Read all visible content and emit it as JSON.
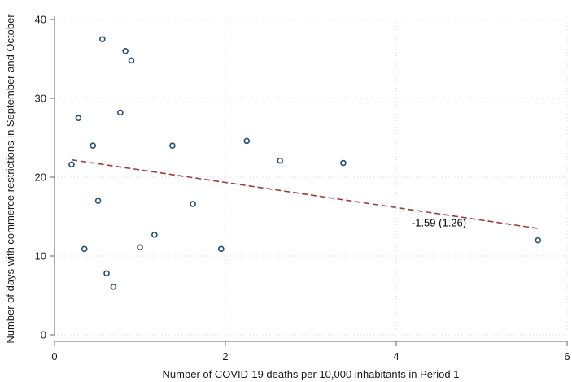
{
  "chart_data": {
    "type": "scatter",
    "xlabel": "Number of COVID-19 deaths per 10,000 inhabitants in Period 1",
    "ylabel": "Number of days with commerce restrictions in September and October",
    "xlim": [
      0,
      6
    ],
    "ylim": [
      0,
      40
    ],
    "x_ticks": [
      "0",
      "2",
      "4",
      "6"
    ],
    "y_ticks": [
      "0",
      "10",
      "20",
      "30",
      "40"
    ],
    "grid": true,
    "points": [
      {
        "x": 0.2,
        "y": 21.6
      },
      {
        "x": 0.28,
        "y": 27.5
      },
      {
        "x": 0.35,
        "y": 10.9
      },
      {
        "x": 0.45,
        "y": 24.0
      },
      {
        "x": 0.51,
        "y": 17.0
      },
      {
        "x": 0.56,
        "y": 37.5
      },
      {
        "x": 0.61,
        "y": 7.8
      },
      {
        "x": 0.69,
        "y": 6.1
      },
      {
        "x": 0.77,
        "y": 28.2
      },
      {
        "x": 0.83,
        "y": 36.0
      },
      {
        "x": 0.9,
        "y": 34.8
      },
      {
        "x": 1.0,
        "y": 11.1
      },
      {
        "x": 1.17,
        "y": 12.7
      },
      {
        "x": 1.38,
        "y": 24.0
      },
      {
        "x": 1.62,
        "y": 16.6
      },
      {
        "x": 1.95,
        "y": 10.9
      },
      {
        "x": 2.25,
        "y": 24.6
      },
      {
        "x": 2.64,
        "y": 22.1
      },
      {
        "x": 3.38,
        "y": 21.8
      },
      {
        "x": 5.66,
        "y": 12.0
      }
    ],
    "fit_line": {
      "x": [
        0.2,
        5.66
      ],
      "y": [
        22.2,
        13.5
      ]
    },
    "annotation": {
      "text": "-1.59 (1.26)",
      "x": 4.5,
      "y": 14.2
    },
    "colors": {
      "points": "#1f4e79",
      "fit_line": "#a23b3b",
      "grid": "#d9d9d9",
      "axis": "#666666"
    }
  }
}
